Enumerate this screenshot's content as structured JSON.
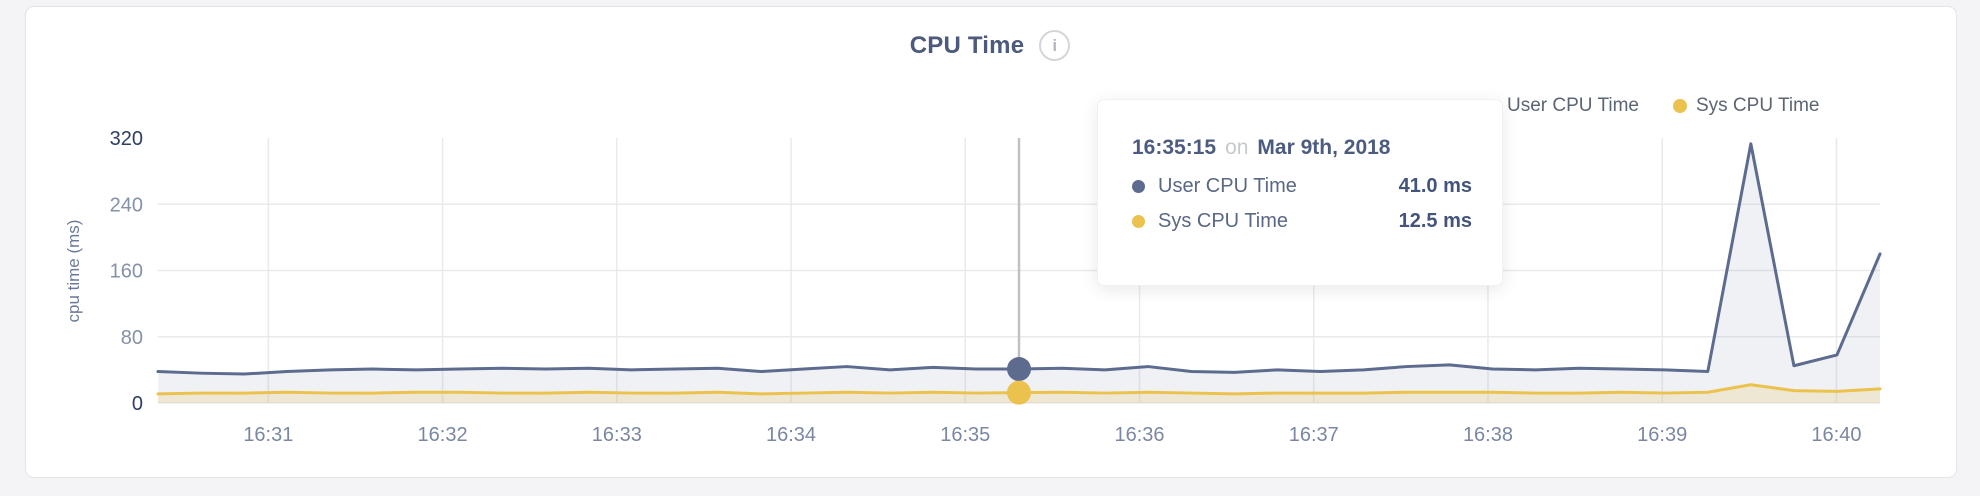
{
  "header": {
    "title": "CPU Time",
    "info_glyph": "i"
  },
  "legend": {
    "items": [
      {
        "label": "User CPU Time",
        "color": "#5d6c8e"
      },
      {
        "label": "Sys CPU Time",
        "color": "#ecc24f"
      }
    ]
  },
  "tooltip": {
    "time": "16:35:15",
    "connector": "on",
    "date": "Mar 9th, 2018",
    "rows": [
      {
        "label": "User CPU Time",
        "value": "41.0 ms",
        "color": "#5d6c8e"
      },
      {
        "label": "Sys CPU Time",
        "value": "12.5 ms",
        "color": "#ecc24f"
      }
    ]
  },
  "chart_data": {
    "type": "area",
    "title": "CPU Time",
    "ylabel": "cpu time (ms)",
    "ylim": [
      0,
      320
    ],
    "yticks": [
      0,
      80,
      160,
      240,
      320
    ],
    "grid_y_values": [
      80,
      160,
      240
    ],
    "grid": true,
    "legend_position": "top-right",
    "x_start": "16:30:22",
    "x_end": "16:40:15",
    "x_span_seconds": 593,
    "point_interval_seconds": 15,
    "x_ticks": [
      {
        "label": "16:31",
        "t": 38
      },
      {
        "label": "16:32",
        "t": 98
      },
      {
        "label": "16:33",
        "t": 158
      },
      {
        "label": "16:34",
        "t": 218
      },
      {
        "label": "16:35",
        "t": 278
      },
      {
        "label": "16:36",
        "t": 338
      },
      {
        "label": "16:37",
        "t": 398
      },
      {
        "label": "16:38",
        "t": 458
      },
      {
        "label": "16:39",
        "t": 518
      },
      {
        "label": "16:40",
        "t": 578
      }
    ],
    "series": [
      {
        "name": "User CPU Time",
        "color": "#5d6c8e",
        "fill": "rgba(100,114,148,0.10)",
        "values": [
          38,
          36,
          35,
          38,
          40,
          41,
          40,
          41,
          42,
          41,
          42,
          40,
          41,
          42,
          38,
          41,
          44,
          40,
          43,
          41,
          41,
          42,
          40,
          44,
          38,
          37,
          40,
          38,
          40,
          44,
          46,
          41,
          40,
          42,
          41,
          40,
          38,
          313,
          45,
          58,
          180
        ]
      },
      {
        "name": "Sys CPU Time",
        "color": "#ecc24f",
        "fill": "rgba(233,196,85,0.20)",
        "values": [
          11,
          12,
          12,
          13,
          12,
          12,
          13,
          13,
          12,
          12,
          13,
          12,
          12,
          13,
          11,
          12,
          13,
          12,
          13,
          12,
          12.5,
          13,
          12,
          13,
          12,
          11,
          12,
          12,
          12,
          13,
          13,
          13,
          12,
          12,
          13,
          12,
          13,
          22,
          15,
          14,
          17
        ]
      }
    ],
    "highlight": {
      "index": 20,
      "time": "16:35:15",
      "date": "Mar 9th, 2018",
      "user_cpu_ms": 41.0,
      "sys_cpu_ms": 12.5
    }
  },
  "colors": {
    "page_bg": "#f4f4f6",
    "card_bg": "#ffffff",
    "card_border": "#e3e4e7",
    "title": "#4c5a7d",
    "grid": "#e9eaec",
    "axis_bottom": "#ececee",
    "ytick_dark": "#2f3d63",
    "ytick_light": "#8591a8",
    "xtick": "#7b87a1",
    "axis_title": "#6b7a99",
    "crosshair": "#c0c1c4"
  }
}
